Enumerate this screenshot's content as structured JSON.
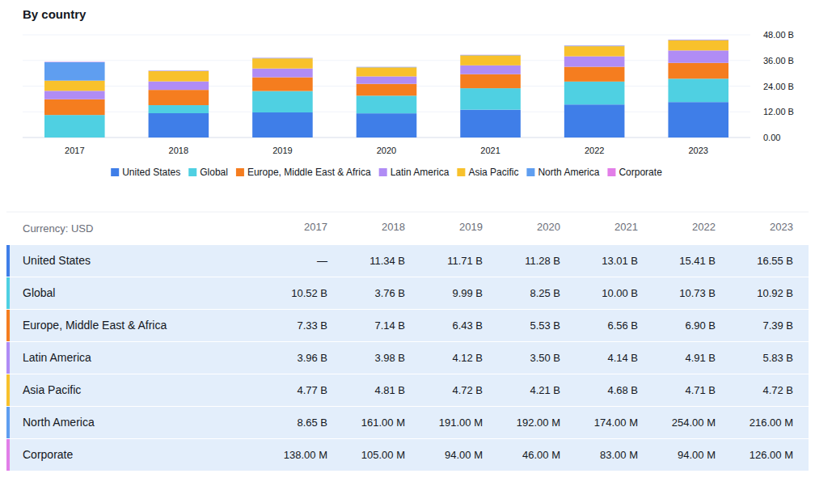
{
  "chart_data": {
    "type": "bar",
    "title": "By country",
    "stacked": true,
    "grid": true,
    "legend": "bottom",
    "categories": [
      "2017",
      "2018",
      "2019",
      "2020",
      "2021",
      "2022",
      "2023"
    ],
    "ylim": [
      0,
      48
    ],
    "yticks": [
      {
        "value": 0,
        "label": "0.00"
      },
      {
        "value": 12,
        "label": "12.00 B"
      },
      {
        "value": 24,
        "label": "24.00 B"
      },
      {
        "value": 36,
        "label": "36.00 B"
      },
      {
        "value": 48,
        "label": "48.00 B"
      }
    ],
    "series": [
      {
        "name": "United States",
        "color": "#3f7ee8",
        "values": [
          null,
          11.34,
          11.71,
          11.28,
          13.01,
          15.41,
          16.55
        ]
      },
      {
        "name": "Global",
        "color": "#4fd0e2",
        "values": [
          10.52,
          3.76,
          9.99,
          8.25,
          10.0,
          10.73,
          10.92
        ]
      },
      {
        "name": "Europe, Middle East & Africa",
        "color": "#f57d1f",
        "values": [
          7.33,
          7.14,
          6.43,
          5.53,
          6.56,
          6.9,
          7.39
        ]
      },
      {
        "name": "Latin America",
        "color": "#b08cf5",
        "values": [
          3.96,
          3.98,
          4.12,
          3.5,
          4.14,
          4.91,
          5.83
        ]
      },
      {
        "name": "Asia Pacific",
        "color": "#f8c12c",
        "values": [
          4.77,
          4.81,
          4.72,
          4.21,
          4.68,
          4.71,
          4.72
        ]
      },
      {
        "name": "North America",
        "color": "#5f9ef0",
        "values": [
          8.65,
          0.161,
          0.191,
          0.192,
          0.174,
          0.254,
          0.216
        ]
      },
      {
        "name": "Corporate",
        "color": "#e27ee8",
        "values": [
          0.138,
          0.105,
          0.094,
          0.046,
          0.083,
          0.094,
          0.126
        ]
      }
    ]
  },
  "table": {
    "header": "Currency: USD",
    "rows": [
      [
        "—",
        "11.34 B",
        "11.71 B",
        "11.28 B",
        "13.01 B",
        "15.41 B",
        "16.55 B"
      ],
      [
        "10.52 B",
        "3.76 B",
        "9.99 B",
        "8.25 B",
        "10.00 B",
        "10.73 B",
        "10.92 B"
      ],
      [
        "7.33 B",
        "7.14 B",
        "6.43 B",
        "5.53 B",
        "6.56 B",
        "6.90 B",
        "7.39 B"
      ],
      [
        "3.96 B",
        "3.98 B",
        "4.12 B",
        "3.50 B",
        "4.14 B",
        "4.91 B",
        "5.83 B"
      ],
      [
        "4.77 B",
        "4.81 B",
        "4.72 B",
        "4.21 B",
        "4.68 B",
        "4.71 B",
        "4.72 B"
      ],
      [
        "8.65 B",
        "161.00 M",
        "191.00 M",
        "192.00 M",
        "174.00 M",
        "254.00 M",
        "216.00 M"
      ],
      [
        "138.00 M",
        "105.00 M",
        "94.00 M",
        "46.00 M",
        "83.00 M",
        "94.00 M",
        "126.00 M"
      ]
    ]
  }
}
